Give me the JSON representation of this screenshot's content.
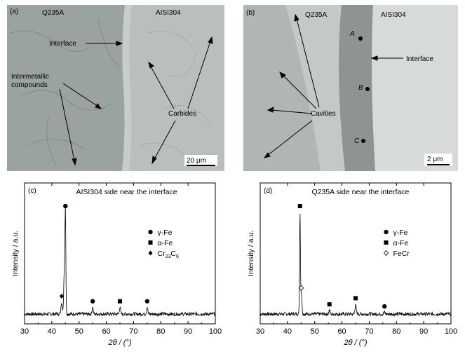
{
  "panel_a": {
    "tag": "(a)",
    "left_material": "Q235A",
    "right_material": "AISI304",
    "labels": {
      "interface": "Interface",
      "intermetallic": "Intermetallic\ncompounds",
      "carbides": "Carbides"
    },
    "scale_bar": "20 μm"
  },
  "panel_b": {
    "tag": "(b)",
    "left_material": "Q235A",
    "right_material": "AISI304",
    "labels": {
      "interface": "Interface",
      "cavities": "Cavities"
    },
    "points": [
      "A",
      "B",
      "C"
    ],
    "scale_bar": "2 μm"
  },
  "chart_data": [
    {
      "type": "line",
      "tag": "(c)",
      "title": "AISI304 side near the interface",
      "xlabel": "2θ / (°)",
      "ylabel": "Intensity / a.u.",
      "xlim": [
        30,
        100
      ],
      "xticks": [
        30,
        40,
        50,
        60,
        70,
        80,
        90,
        100
      ],
      "legend": [
        "γ-Fe",
        "α-Fe",
        "Cr23C6"
      ],
      "legend_placement": "center-right",
      "peaks": [
        {
          "x": 43.6,
          "h": 0.12,
          "marker": "Cr23C6"
        },
        {
          "x": 44.6,
          "h": 0.45,
          "marker": ""
        },
        {
          "x": 45.0,
          "h": 1.0,
          "marker": "γ-Fe"
        },
        {
          "x": 55.0,
          "h": 0.07,
          "marker": "γ-Fe"
        },
        {
          "x": 65.0,
          "h": 0.07,
          "marker": "α-Fe"
        },
        {
          "x": 75.0,
          "h": 0.07,
          "marker": "γ-Fe"
        }
      ]
    },
    {
      "type": "line",
      "tag": "(d)",
      "title": "Q235A side near the interface",
      "xlabel": "2θ / (°)",
      "ylabel": "Intensity / a.u.",
      "xlim": [
        30,
        100
      ],
      "xticks": [
        30,
        40,
        50,
        60,
        70,
        80,
        90,
        100
      ],
      "legend": [
        "γ-Fe",
        "α-Fe",
        "FeCr"
      ],
      "legend_placement": "center-right",
      "peaks": [
        {
          "x": 44.6,
          "h": 1.0,
          "marker": "α-Fe"
        },
        {
          "x": 45.1,
          "h": 0.2,
          "marker": "FeCr"
        },
        {
          "x": 55.4,
          "h": 0.04,
          "marker": "α-Fe"
        },
        {
          "x": 65.0,
          "h": 0.1,
          "marker": "α-Fe"
        },
        {
          "x": 75.6,
          "h": 0.02,
          "marker": "γ-Fe"
        }
      ]
    }
  ]
}
